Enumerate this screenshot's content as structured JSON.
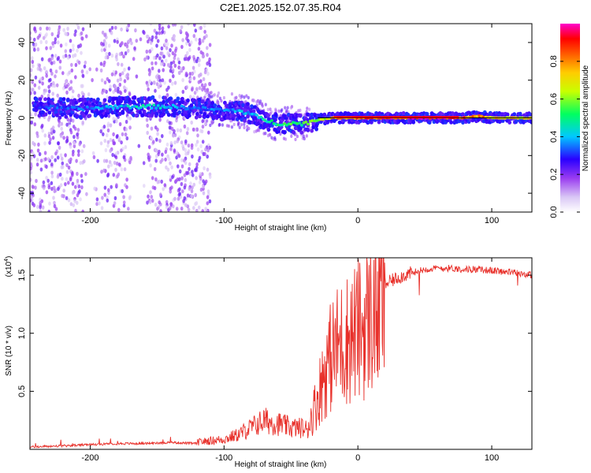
{
  "figure": {
    "title": "C2E1.2025.152.07.35.R04"
  },
  "chart_data": [
    {
      "type": "heatmap",
      "title": "C2E1.2025.152.07.35.R04",
      "xlabel": "Height of straight line (km)",
      "ylabel": "Frequency (Hz)",
      "xlim": [
        -245,
        130
      ],
      "ylim": [
        -50,
        50
      ],
      "xticks": [
        -200,
        -100,
        0,
        100
      ],
      "yticks": [
        -40,
        -20,
        0,
        20,
        40
      ],
      "colorbar": {
        "label": "Normalized spectral amplitude",
        "range": [
          0.0,
          1.0
        ],
        "ticks": [
          0.0,
          0.2,
          0.4,
          0.6,
          0.8
        ],
        "tick_labels": [
          "0.0",
          "0.2",
          "0.4",
          "0.6",
          "0.8"
        ],
        "colors": [
          "#ffffff",
          "#c4a8f0",
          "#8a2be2",
          "#2a00ff",
          "#00c8ff",
          "#00ff60",
          "#c8ff00",
          "#ffcc00",
          "#ff6a00",
          "#ff0000",
          "#ff00ff"
        ]
      },
      "ridge": {
        "x": [
          -240,
          -220,
          -200,
          -180,
          -160,
          -140,
          -120,
          -100,
          -90,
          -80,
          -70,
          -60,
          -50,
          -40,
          -30,
          -20,
          -10,
          0,
          20,
          40,
          60,
          80,
          90,
          100,
          120,
          130
        ],
        "freq": [
          6,
          5,
          5,
          6,
          6,
          6,
          5,
          4,
          4,
          2,
          -1,
          -3,
          -3,
          -3,
          -1,
          0,
          0,
          0,
          0,
          0,
          0,
          0,
          1,
          0,
          0,
          0
        ],
        "amplitude": [
          0.3,
          0.35,
          0.35,
          0.4,
          0.45,
          0.4,
          0.35,
          0.35,
          0.4,
          0.4,
          0.45,
          0.5,
          0.55,
          0.55,
          0.6,
          0.75,
          0.8,
          0.85,
          0.9,
          0.95,
          0.95,
          0.85,
          0.8,
          0.75,
          0.7,
          0.7
        ]
      },
      "scatter_region": {
        "x_from": -245,
        "x_to": -110,
        "freq_from": -50,
        "freq_to": 50,
        "amplitude": 0.15
      }
    },
    {
      "type": "line",
      "xlabel": "Height of straight line (km)",
      "ylabel": "SNR (10 * v/v)",
      "multiplier": "(x10",
      "multiplier_exp": "4",
      "multiplier_close": ")",
      "xlim": [
        -245,
        130
      ],
      "ylim": [
        0,
        1.65
      ],
      "xticks": [
        -200,
        -100,
        0,
        100
      ],
      "yticks": [
        0.5,
        1.0,
        1.5
      ],
      "ytick_labels": [
        "0.5",
        "1.0",
        "1.5"
      ],
      "color": "#e8302a",
      "series": [
        {
          "name": "SNR",
          "x": [
            -245,
            -220,
            -200,
            -180,
            -160,
            -140,
            -120,
            -100,
            -90,
            -80,
            -70,
            -60,
            -50,
            -40,
            -35,
            -30,
            -25,
            -20,
            -15,
            -10,
            -5,
            0,
            5,
            10,
            15,
            20,
            30,
            40,
            50,
            60,
            70,
            80,
            90,
            100,
            110,
            120,
            125,
            130
          ],
          "y": [
            0.02,
            0.03,
            0.04,
            0.05,
            0.05,
            0.06,
            0.05,
            0.07,
            0.1,
            0.15,
            0.2,
            0.18,
            0.15,
            0.15,
            0.3,
            0.5,
            0.75,
            0.9,
            1.0,
            1.05,
            1.1,
            1.15,
            1.2,
            1.3,
            1.35,
            1.42,
            1.48,
            1.52,
            1.55,
            1.56,
            1.56,
            1.55,
            1.55,
            1.54,
            1.53,
            1.52,
            1.51,
            1.5
          ]
        }
      ]
    }
  ]
}
